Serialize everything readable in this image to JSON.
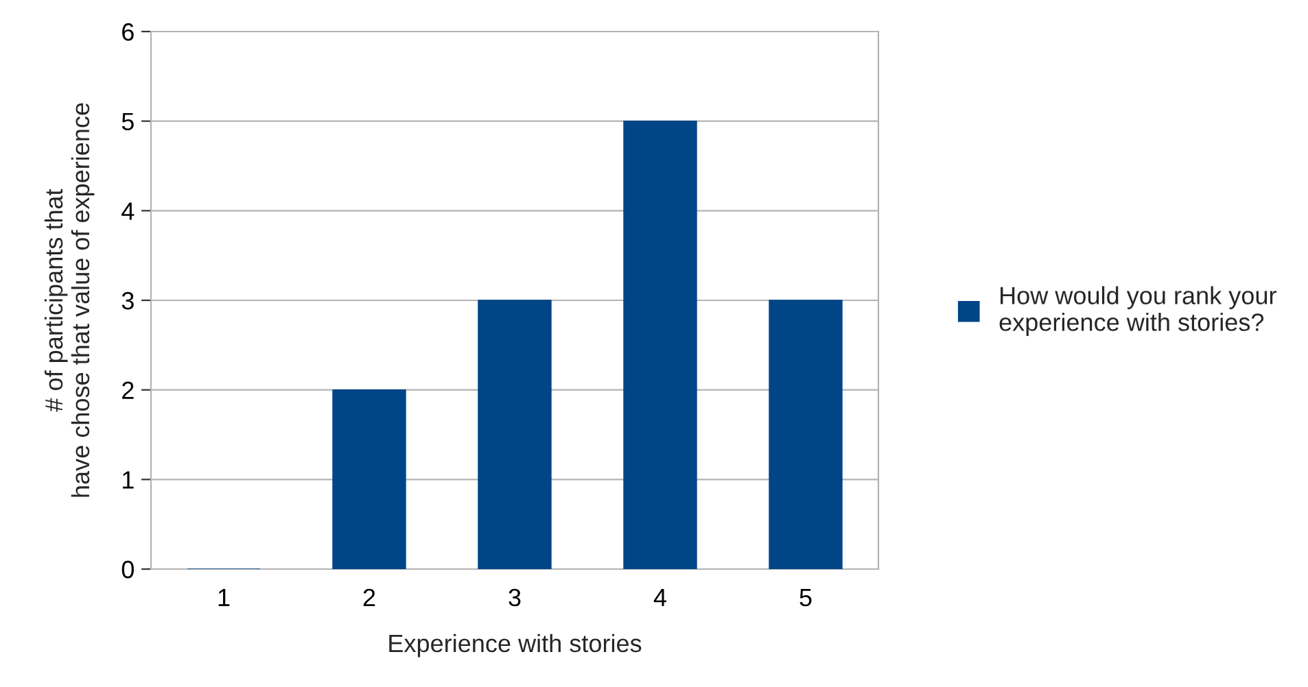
{
  "chart_data": {
    "type": "bar",
    "xlabel": "Experience with stories",
    "ylabel": "# of participants that\nhave chose that value of experience",
    "categories": [
      "1",
      "2",
      "3",
      "4",
      "5"
    ],
    "series": [
      {
        "name": "How would you rank your\nexperience with stories?",
        "color": "#004586",
        "values": [
          0,
          2,
          3,
          5,
          3
        ]
      }
    ],
    "ylim": [
      0,
      6
    ],
    "yticks": [
      0,
      1,
      2,
      3,
      4,
      5,
      6
    ],
    "grid": "y",
    "legend": "right"
  }
}
